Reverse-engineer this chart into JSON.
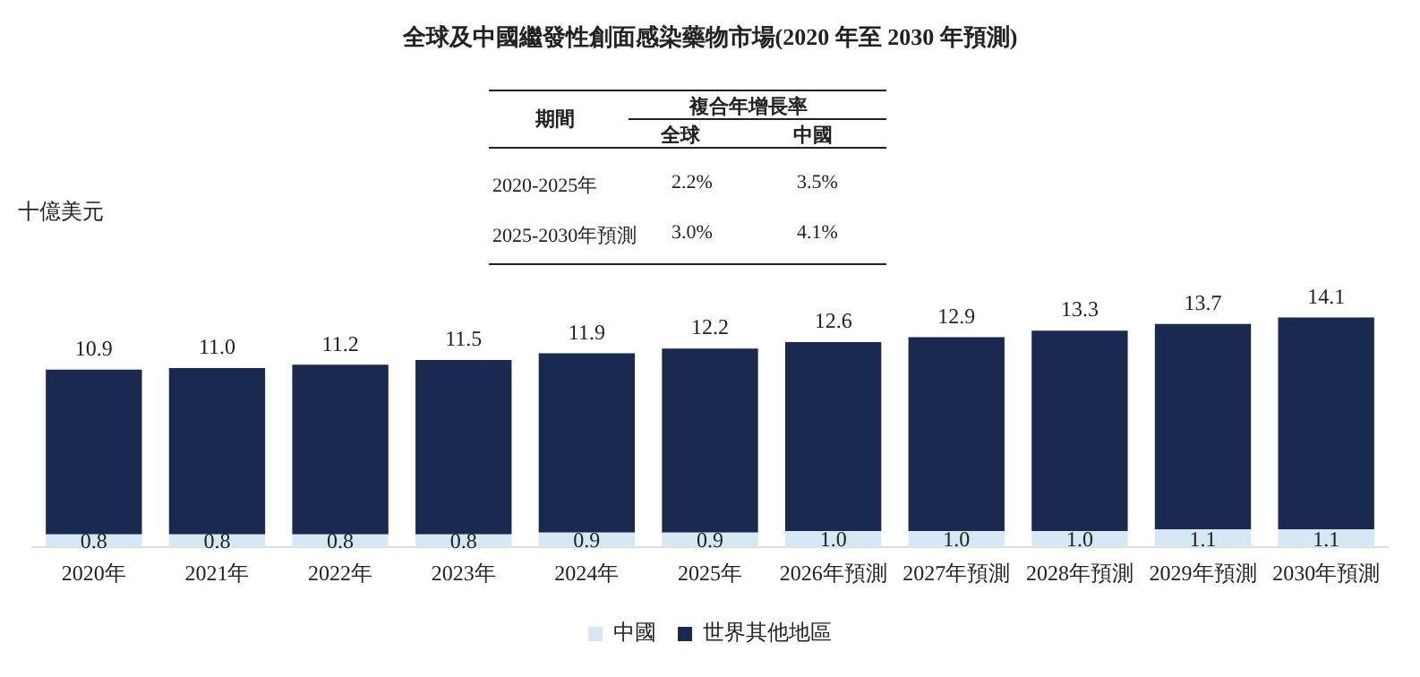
{
  "chart_data": {
    "type": "bar",
    "title": "全球及中國繼發性創面感染藥物市場(2020 年至 2030 年預測)",
    "ylabel": "十億美元",
    "annotations": [
      "期間",
      "複合年增長率",
      "全球",
      "中國",
      "2020-2025年",
      "2.2%",
      "3.5%",
      "2025-2030年預測",
      "3.0%",
      "4.1%"
    ],
    "categories": [
      "2020年",
      "2021年",
      "2022年",
      "2023年",
      "2024年",
      "2025年",
      "2026年預測",
      "2027年預測",
      "2028年預測",
      "2029年預測",
      "2030年預測"
    ],
    "stacked": true,
    "legend": "bottom",
    "grid": false,
    "series": [
      {
        "name": "中國",
        "color": "#d6e8f4",
        "values": [
          0.8,
          0.8,
          0.8,
          0.8,
          0.9,
          0.9,
          1.0,
          1.0,
          1.0,
          1.1,
          1.1
        ],
        "value_labels": [
          "0.8",
          "0.8",
          "0.8",
          "0.8",
          "0.9",
          "0.9",
          "1.0",
          "1.0",
          "1.0",
          "1.1",
          "1.1"
        ]
      },
      {
        "name": "世界其他地區",
        "color": "#1a2950",
        "values": [
          10.1,
          10.2,
          10.4,
          10.7,
          11.0,
          11.3,
          11.6,
          11.9,
          12.3,
          12.6,
          13.0
        ]
      }
    ],
    "totals": [
      "10.9",
      "11.0",
      "11.2",
      "11.5",
      "11.9",
      "12.2",
      "12.6",
      "12.9",
      "13.3",
      "13.7",
      "14.1"
    ]
  }
}
